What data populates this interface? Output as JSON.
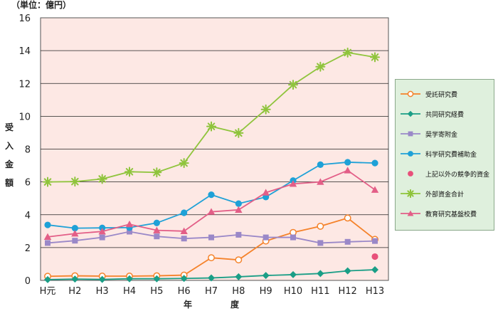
{
  "unit_label": "（単位：億円）",
  "y_axis_label_chars": [
    "受",
    "入",
    "金",
    "額"
  ],
  "x_axis_label_parts": [
    "年",
    "度"
  ],
  "chart_data": {
    "type": "line",
    "categories": [
      "H元",
      "H2",
      "H3",
      "H4",
      "H5",
      "H6",
      "H7",
      "H8",
      "H9",
      "H10",
      "H11",
      "H12",
      "H13"
    ],
    "ylim": [
      0,
      16
    ],
    "yticks": [
      0,
      2,
      4,
      6,
      8,
      10,
      12,
      14,
      16
    ],
    "ylabel": "受入金額",
    "xlabel": "年度",
    "grid": true,
    "legend_position": "right",
    "series": [
      {
        "name": "受託研究費",
        "color": "#f5822a",
        "marker": "circle-open",
        "values": [
          0.25,
          0.28,
          0.26,
          0.26,
          0.28,
          0.32,
          1.38,
          1.25,
          2.4,
          2.92,
          3.3,
          3.8,
          2.5
        ]
      },
      {
        "name": "共同研究経費",
        "color": "#1a9e86",
        "marker": "diamond",
        "values": [
          0.05,
          0.08,
          0.06,
          0.1,
          0.1,
          0.12,
          0.15,
          0.22,
          0.3,
          0.35,
          0.42,
          0.58,
          0.65
        ]
      },
      {
        "name": "奨学寄附金",
        "color": "#9a88c8",
        "marker": "square",
        "values": [
          2.28,
          2.42,
          2.62,
          2.97,
          2.68,
          2.55,
          2.62,
          2.78,
          2.62,
          2.62,
          2.28,
          2.35,
          2.4
        ]
      },
      {
        "name": "科学研究費補助金",
        "color": "#1ea1d7",
        "marker": "circle",
        "values": [
          3.38,
          3.18,
          3.2,
          3.22,
          3.5,
          4.12,
          5.22,
          4.68,
          5.08,
          6.08,
          7.05,
          7.2,
          7.15
        ]
      },
      {
        "name": "上記以外の競争的資金",
        "color": "#e8507a",
        "marker": "circle",
        "points": [
          {
            "x": "H13",
            "y": 1.45
          }
        ]
      },
      {
        "name": "外部資金合計",
        "color": "#8fc43c",
        "marker": "asterisk",
        "values": [
          6.0,
          6.02,
          6.18,
          6.62,
          6.58,
          7.15,
          9.38,
          8.98,
          10.42,
          11.92,
          13.02,
          13.88,
          13.6
        ]
      },
      {
        "name": "教育研究基盤校費",
        "color": "#e35e87",
        "marker": "triangle",
        "values": [
          2.65,
          2.85,
          2.98,
          3.42,
          3.05,
          3.0,
          4.18,
          4.3,
          5.35,
          5.88,
          6.0,
          6.7,
          5.52
        ]
      }
    ]
  },
  "colors": {
    "plot_background": "#fde8e4",
    "legend_background": "#dff0dd"
  }
}
